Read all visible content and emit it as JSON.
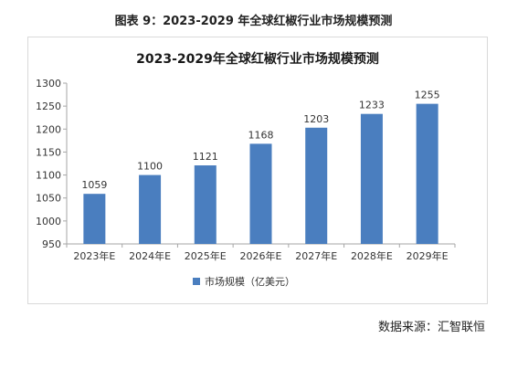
{
  "figure": {
    "caption": "图表 9：2023-2029 年全球红椒行业市场规模预测",
    "source": "数据来源：汇智联恒"
  },
  "chart_data": {
    "type": "bar",
    "title": "2023-2029年全球红椒行业市场规模预测",
    "categories": [
      "2023年E",
      "2024年E",
      "2025年E",
      "2026年E",
      "2027年E",
      "2028年E",
      "2029年E"
    ],
    "series": [
      {
        "name": "市场规模（亿美元）",
        "values": [
          1059,
          1100,
          1121,
          1168,
          1203,
          1233,
          1255
        ]
      }
    ],
    "xlabel": "",
    "ylabel": "",
    "ylim": [
      950,
      1300
    ],
    "yticks": [
      950,
      1000,
      1050,
      1100,
      1150,
      1200,
      1250,
      1300
    ],
    "grid": false,
    "legend": "bottom",
    "bar_color": "#4a7ebf",
    "axis_color": "#a6a6a6"
  }
}
